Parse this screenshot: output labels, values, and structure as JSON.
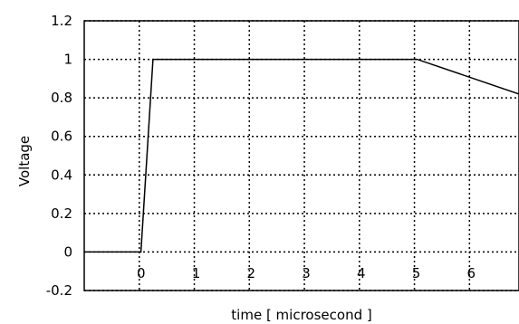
{
  "chart_data": {
    "type": "line",
    "title": "",
    "xlabel": "time [ microsecond ]",
    "ylabel": "Voltage",
    "xlim": [
      -1,
      6.9
    ],
    "ylim": [
      -0.2,
      1.2
    ],
    "x_ticks": [
      "0",
      "1",
      "2",
      "3",
      "4",
      "5",
      "6"
    ],
    "y_ticks": [
      "-0.2",
      "0",
      "0.2",
      "0.4",
      "0.6",
      "0.8",
      "1",
      "1.2"
    ],
    "grid": true,
    "series": [
      {
        "x": [
          -1,
          0.03,
          0.25,
          5.05,
          6.9
        ],
        "y": [
          0,
          0,
          1,
          1,
          0.82
        ],
        "color": "#000000"
      }
    ]
  }
}
